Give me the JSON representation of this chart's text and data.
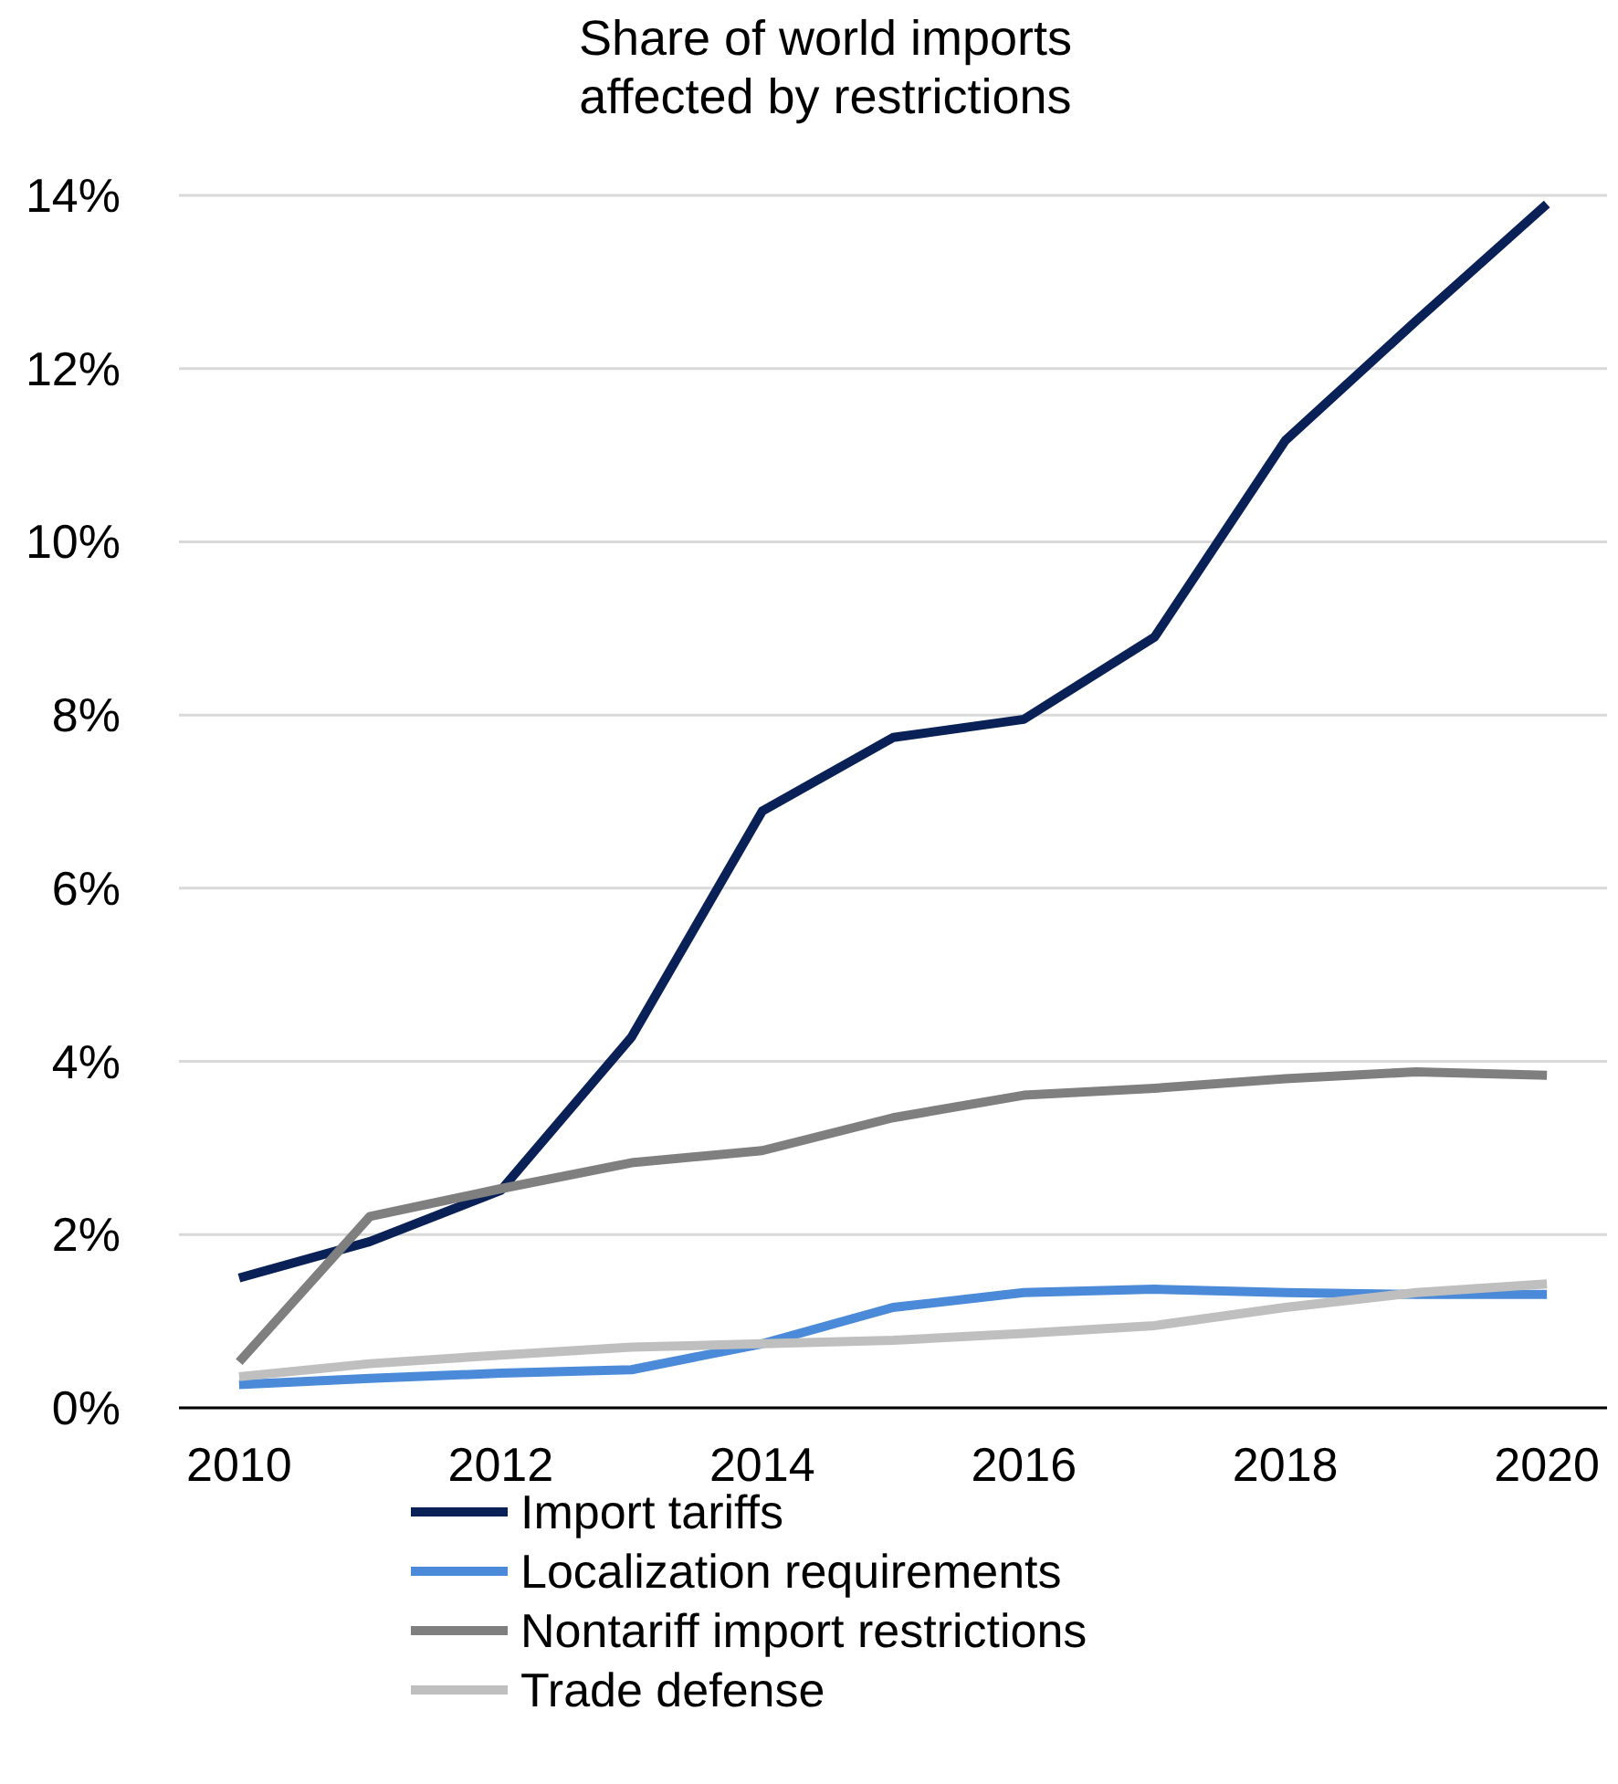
{
  "chart_data": {
    "type": "line",
    "title": "Share of world imports affected by restrictions",
    "x": [
      2010,
      2011,
      2012,
      2013,
      2014,
      2015,
      2016,
      2017,
      2018,
      2019,
      2020
    ],
    "series": [
      {
        "name": "Import tariffs",
        "color": "#0a2158",
        "values": [
          1.5,
          1.92,
          2.51,
          4.28,
          6.89,
          7.74,
          7.95,
          8.9,
          11.17,
          12.55,
          13.9
        ]
      },
      {
        "name": "Localization requirements",
        "color": "#4a8ad8",
        "values": [
          0.27,
          0.34,
          0.4,
          0.44,
          0.74,
          1.16,
          1.33,
          1.37,
          1.33,
          1.31,
          1.31
        ]
      },
      {
        "name": "Nontariff import restrictions",
        "color": "#7f7f7f",
        "values": [
          0.53,
          2.21,
          2.53,
          2.83,
          2.97,
          3.35,
          3.61,
          3.69,
          3.8,
          3.88,
          3.84
        ]
      },
      {
        "name": "Trade defense",
        "color": "#bfbfbf",
        "values": [
          0.36,
          0.51,
          0.61,
          0.7,
          0.74,
          0.78,
          0.86,
          0.95,
          1.16,
          1.33,
          1.43
        ]
      }
    ],
    "xlim": [
      2009.54,
      2020.46
    ],
    "xticks": [
      2010,
      2012,
      2014,
      2016,
      2018,
      2020
    ],
    "ylim": [
      0,
      14
    ],
    "yticks": [
      {
        "value": 0,
        "label": "0%"
      },
      {
        "value": 2,
        "label": "2%"
      },
      {
        "value": 4,
        "label": "4%"
      },
      {
        "value": 6,
        "label": "6%"
      },
      {
        "value": 8,
        "label": "8%"
      },
      {
        "value": 10,
        "label": "10%"
      },
      {
        "value": 12,
        "label": "12%"
      },
      {
        "value": 14,
        "label": "14%"
      }
    ],
    "grid": "y",
    "legend": "bottom",
    "marker": "none",
    "line_style": "solid"
  }
}
